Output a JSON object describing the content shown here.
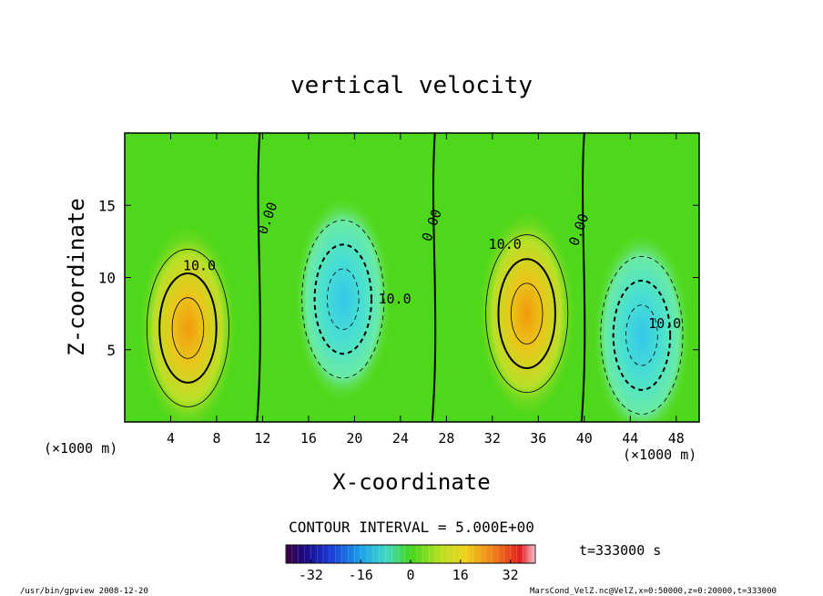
{
  "chart_data": {
    "type": "heatmap",
    "title": "vertical velocity",
    "xlabel": "X-coordinate",
    "ylabel": "Z-coordinate",
    "x_unit_left": "(×1000 m)",
    "x_unit_right": "(×1000 m)",
    "xlim": [
      0,
      50
    ],
    "ylim": [
      0,
      20
    ],
    "x_ticks": [
      4,
      8,
      12,
      16,
      20,
      24,
      28,
      32,
      36,
      40,
      44,
      48
    ],
    "y_ticks": [
      5,
      10,
      15
    ],
    "contour_interval_text": "CONTOUR INTERVAL = 5.000E+00",
    "time_text": "t=333000 s",
    "colorbar": {
      "range": [
        -40,
        40
      ],
      "ticks": [
        -32,
        -16,
        0,
        16,
        32
      ]
    },
    "contour_labels": [
      {
        "text": "10.0",
        "x": 6.5,
        "y": 10.5
      },
      {
        "text": "0.00",
        "x": 12.8,
        "y": 14.0
      },
      {
        "text": "10.0",
        "x": 23.5,
        "y": 8.2
      },
      {
        "text": "0.00",
        "x": 27.1,
        "y": 13.5
      },
      {
        "text": "10.0",
        "x": 33.1,
        "y": 12.0
      },
      {
        "text": "0.00",
        "x": 39.9,
        "y": 13.2
      },
      {
        "text": "10.0",
        "x": 47.0,
        "y": 6.5
      }
    ],
    "features": [
      {
        "sign": "up",
        "center_x": 5.5,
        "center_z": 6.5,
        "peak": 22
      },
      {
        "sign": "down",
        "center_x": 19.0,
        "center_z": 8.5,
        "peak": -14
      },
      {
        "sign": "up",
        "center_x": 35.0,
        "center_z": 7.5,
        "peak": 24
      },
      {
        "sign": "down",
        "center_x": 45.0,
        "center_z": 6.0,
        "peak": -20
      }
    ]
  },
  "footer": {
    "left": "/usr/bin/gpview  2008-12-20",
    "right": "MarsCond_VelZ.nc@VelZ,x=0:50000,z=0:20000,t=333000"
  }
}
